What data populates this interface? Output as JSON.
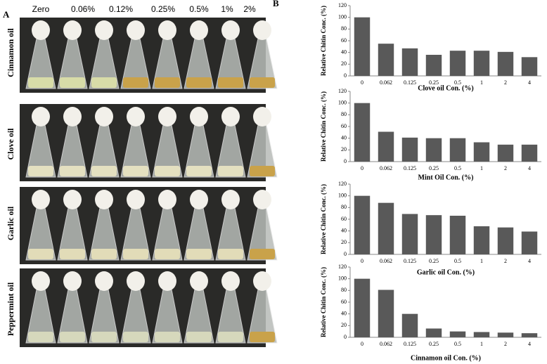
{
  "panels": {
    "a": "A",
    "b": "B"
  },
  "photo": {
    "columns": [
      "Zero",
      "0.06%",
      "0.12%",
      "0.25%",
      "0.5%",
      "1%",
      "2%"
    ],
    "rows": [
      "Cinnamon oil",
      "Clove oil",
      "Garlic oil",
      "Peppermint oil"
    ]
  },
  "chart_data": [
    {
      "type": "bar",
      "ylabel": "Relative Chitin Conc. (%)",
      "xlabel": "Clove oil Con. (%)",
      "categories": [
        "0",
        "0.062",
        "0.125",
        "0.25",
        "0.5",
        "1",
        "2",
        "4"
      ],
      "values": [
        100,
        55,
        47,
        36,
        43,
        43,
        41,
        32
      ],
      "color": "#595959",
      "ylim": [
        0,
        120
      ],
      "yticks": [
        0,
        20,
        40,
        60,
        80,
        100,
        120
      ]
    },
    {
      "type": "bar",
      "ylabel": "Relative Chitin Conc. (%)",
      "xlabel": "Mint Oil Con. (%)",
      "categories": [
        "0",
        "0.062",
        "0.125",
        "0.25",
        "0.5",
        "1",
        "2",
        "4"
      ],
      "values": [
        100,
        51,
        41,
        40,
        40,
        33,
        29,
        29
      ],
      "color": "#595959",
      "ylim": [
        0,
        120
      ],
      "yticks": [
        0,
        20,
        40,
        60,
        80,
        100,
        120
      ]
    },
    {
      "type": "bar",
      "ylabel": "Relative Chitin Conc. (%)",
      "xlabel": "Garlic oil Con. (%)",
      "categories": [
        "0",
        "0.062",
        "0.125",
        "0.25",
        "0.5",
        "1",
        "2",
        "4"
      ],
      "values": [
        100,
        88,
        69,
        67,
        66,
        48,
        46,
        39
      ],
      "color": "#595959",
      "ylim": [
        0,
        120
      ],
      "yticks": [
        0,
        20,
        40,
        60,
        80,
        100,
        120
      ]
    },
    {
      "type": "bar",
      "ylabel": "Relative Chitin Conc. (%)",
      "xlabel": "Cinnamon oil Con. (%)",
      "categories": [
        "0",
        "0.062",
        "0.125",
        "0.25",
        "0.5",
        "1",
        "2",
        "4"
      ],
      "values": [
        100,
        81,
        40,
        15,
        10,
        9,
        8,
        7
      ],
      "color": "#595959",
      "ylim": [
        0,
        120
      ],
      "yticks": [
        0,
        20,
        40,
        60,
        80,
        100,
        120
      ]
    }
  ]
}
